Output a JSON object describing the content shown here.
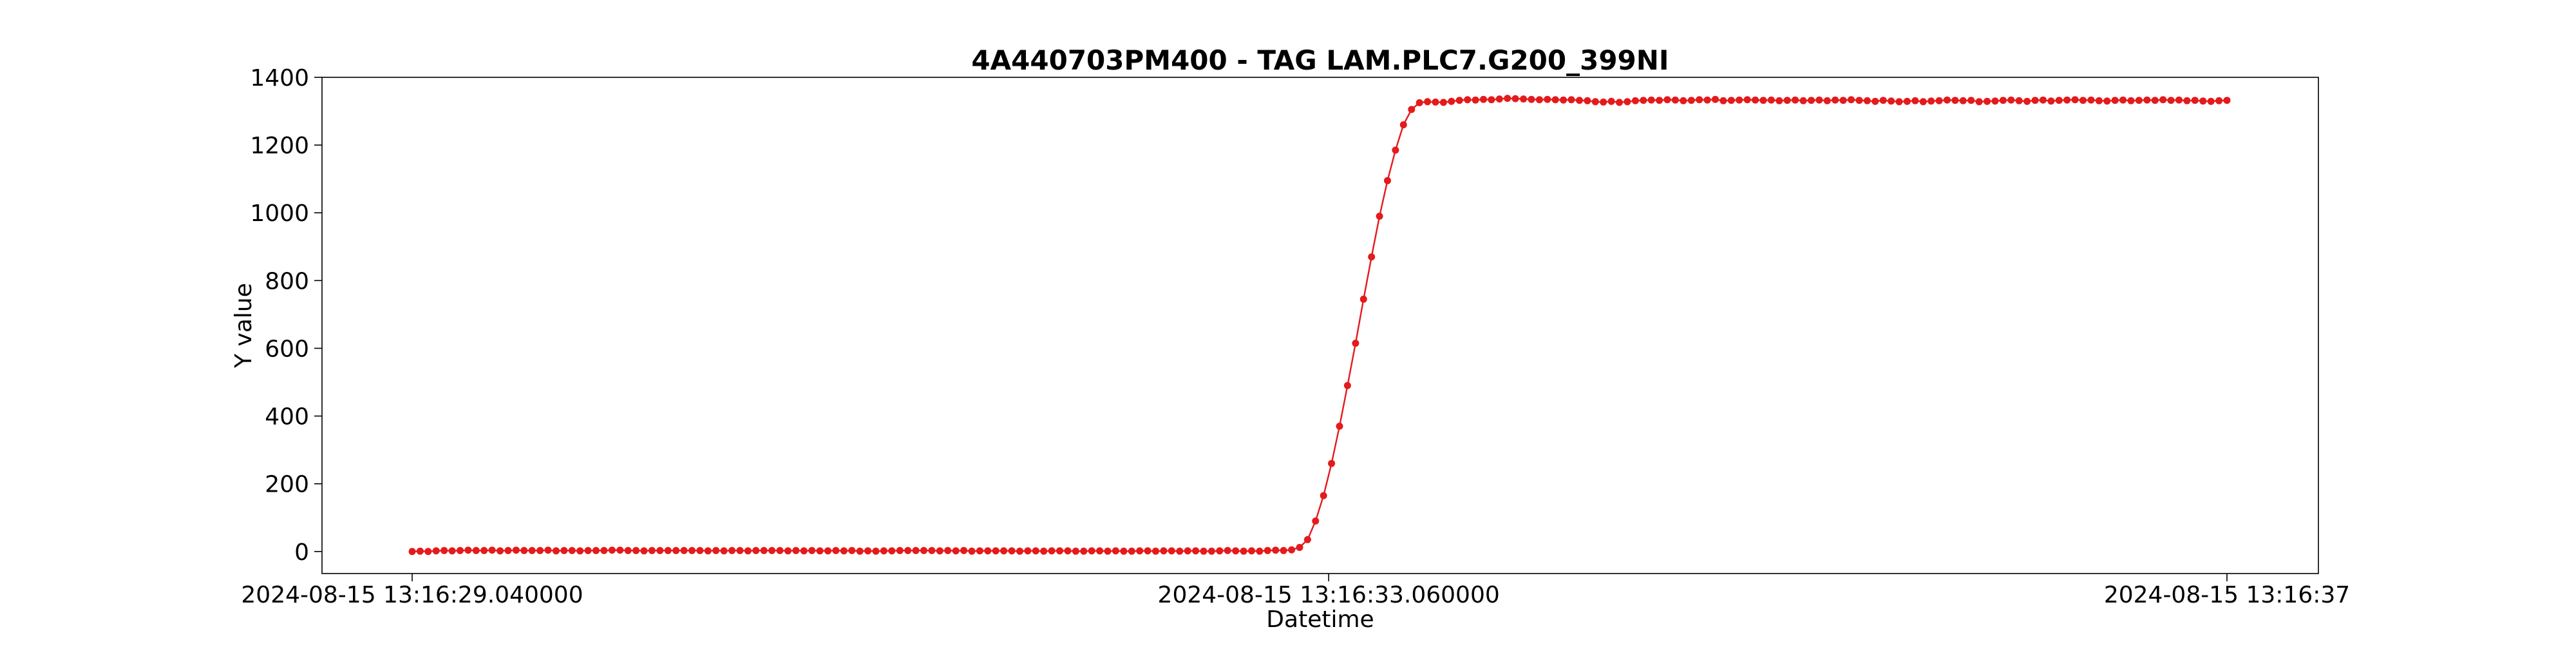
{
  "chart_data": {
    "type": "line",
    "title": "4A440703PM400 - TAG LAM.PLC7.G200_399NI",
    "xlabel": "Datetime",
    "ylabel": "Y value",
    "x_start": "2024-08-15 13:16:29.040000",
    "x_end": "2024-08-15 13:16:37",
    "x_ticks": [
      {
        "t": "2024-08-15 13:16:29.040000",
        "label": "2024-08-15 13:16:29.040000"
      },
      {
        "t": "2024-08-15 13:16:33.060000",
        "label": "2024-08-15 13:16:33.060000"
      },
      {
        "t": "2024-08-15 13:16:37.000000",
        "label": "2024-08-15 13:16:37"
      }
    ],
    "ylim": [
      -65,
      1400
    ],
    "y_ticks": [
      0,
      200,
      400,
      600,
      800,
      1000,
      1200,
      1400
    ],
    "grid": false,
    "series": [
      {
        "color": "#e41a1c",
        "marker": "circle",
        "values": [
          0,
          1,
          0,
          2,
          3,
          2,
          3,
          4,
          3,
          3,
          4,
          2,
          3,
          4,
          3,
          3,
          3,
          4,
          2,
          3,
          3,
          2,
          3,
          3,
          3,
          4,
          4,
          3,
          3,
          2,
          3,
          3,
          3,
          3,
          3,
          3,
          3,
          2,
          3,
          2,
          3,
          3,
          2,
          3,
          3,
          3,
          3,
          2,
          3,
          2,
          3,
          2,
          2,
          3,
          2,
          3,
          1,
          2,
          1,
          2,
          2,
          3,
          3,
          3,
          3,
          3,
          2,
          3,
          2,
          3,
          1,
          2,
          2,
          2,
          2,
          2,
          1,
          2,
          2,
          1,
          2,
          2,
          2,
          1,
          1,
          2,
          2,
          1,
          2,
          1,
          1,
          2,
          2,
          1,
          2,
          2,
          1,
          2,
          2,
          1,
          1,
          2,
          3,
          2,
          1,
          2,
          1,
          3,
          4,
          3,
          5,
          12,
          35,
          90,
          165,
          260,
          370,
          490,
          615,
          745,
          870,
          990,
          1095,
          1185,
          1260,
          1305,
          1325,
          1328,
          1327,
          1326,
          1329,
          1332,
          1334,
          1333,
          1335,
          1334,
          1336,
          1338,
          1337,
          1336,
          1335,
          1334,
          1335,
          1334,
          1333,
          1334,
          1332,
          1331,
          1328,
          1327,
          1329,
          1326,
          1328,
          1331,
          1332,
          1333,
          1332,
          1334,
          1333,
          1331,
          1332,
          1334,
          1333,
          1335,
          1331,
          1332,
          1333,
          1334,
          1333,
          1332,
          1333,
          1331,
          1332,
          1333,
          1331,
          1332,
          1333,
          1331,
          1333,
          1332,
          1334,
          1332,
          1331,
          1329,
          1332,
          1330,
          1328,
          1329,
          1331,
          1328,
          1330,
          1331,
          1333,
          1332,
          1331,
          1332,
          1328,
          1329,
          1330,
          1332,
          1333,
          1331,
          1329,
          1332,
          1333,
          1330,
          1332,
          1333,
          1334,
          1332,
          1333,
          1331,
          1330,
          1332,
          1333,
          1331,
          1332,
          1333,
          1332,
          1334,
          1332,
          1333,
          1331,
          1332,
          1330,
          1329,
          1331,
          1332
        ]
      }
    ]
  }
}
